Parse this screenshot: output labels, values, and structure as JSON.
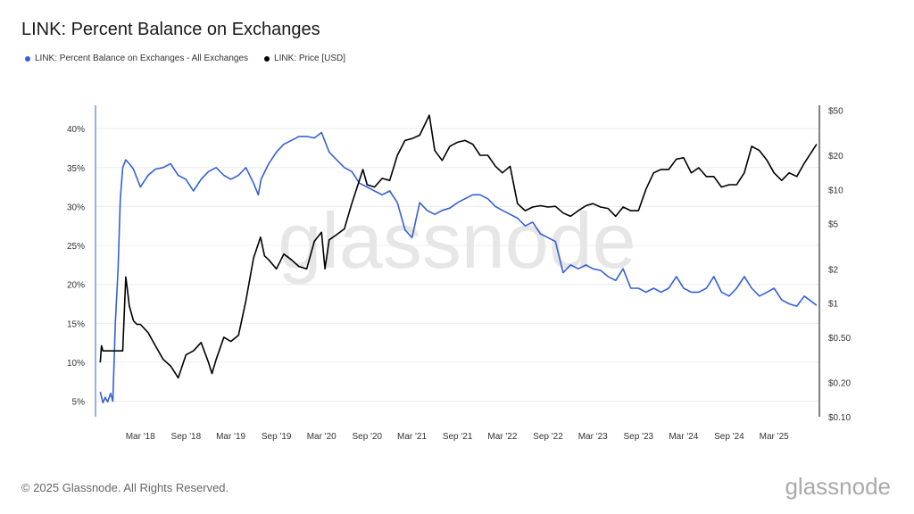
{
  "header": {
    "title": "LINK: Percent Balance on Exchanges"
  },
  "legend": [
    {
      "label": "LINK: Percent Balance on Exchanges - All Exchanges",
      "color": "#3560d6"
    },
    {
      "label": "LINK: Price [USD]",
      "color": "#000000"
    }
  ],
  "footer": {
    "copyright": "© 2025 Glassnode. All Rights Reserved.",
    "brand": "glassnode"
  },
  "watermark": "glassnode",
  "chart_data": {
    "type": "line",
    "x_axis": {
      "type": "date",
      "range": [
        "2017-09-01",
        "2025-08-31"
      ],
      "tick_labels": [
        "Mar '18",
        "Sep '18",
        "Mar '19",
        "Sep '19",
        "Mar '20",
        "Sep '20",
        "Mar '21",
        "Sep '21",
        "Mar '22",
        "Sep '22",
        "Mar '23",
        "Sep '23",
        "Mar '24",
        "Sep '24",
        "Mar '25"
      ],
      "tick_dates": [
        "2018-03-01",
        "2018-09-01",
        "2019-03-01",
        "2019-09-01",
        "2020-03-01",
        "2020-09-01",
        "2021-03-01",
        "2021-09-01",
        "2022-03-01",
        "2022-09-01",
        "2023-03-01",
        "2023-09-01",
        "2024-03-01",
        "2024-09-01",
        "2025-03-01"
      ]
    },
    "y_left": {
      "label": "",
      "unit": "%",
      "range": [
        3,
        43
      ],
      "ticks": [
        5,
        10,
        15,
        20,
        25,
        30,
        35,
        40
      ],
      "tick_labels": [
        "5%",
        "10%",
        "15%",
        "20%",
        "25%",
        "30%",
        "35%",
        "40%"
      ]
    },
    "y_right": {
      "label": "",
      "scale": "log",
      "range": [
        0.1,
        55
      ],
      "ticks": [
        0.1,
        0.2,
        0.5,
        1,
        2,
        5,
        10,
        20,
        50
      ],
      "tick_labels": [
        "$0.10",
        "$0.20",
        "$0.50",
        "$1",
        "$2",
        "$5",
        "$10",
        "$20",
        "$50"
      ]
    },
    "grid": "horizontal",
    "series": [
      {
        "name": "LINK: Percent Balance on Exchanges - All Exchanges",
        "axis": "left",
        "color": "#3560d6",
        "x": [
          "2017-09-20",
          "2017-10-01",
          "2017-10-10",
          "2017-10-20",
          "2017-11-01",
          "2017-11-10",
          "2017-11-20",
          "2017-12-01",
          "2017-12-10",
          "2017-12-20",
          "2018-01-01",
          "2018-01-15",
          "2018-02-01",
          "2018-03-01",
          "2018-04-01",
          "2018-05-01",
          "2018-06-01",
          "2018-07-01",
          "2018-08-01",
          "2018-09-01",
          "2018-10-01",
          "2018-11-01",
          "2018-12-01",
          "2019-01-01",
          "2019-02-01",
          "2019-03-01",
          "2019-04-01",
          "2019-05-01",
          "2019-06-01",
          "2019-06-20",
          "2019-07-01",
          "2019-08-01",
          "2019-09-01",
          "2019-10-01",
          "2019-11-01",
          "2019-12-01",
          "2020-01-01",
          "2020-02-01",
          "2020-03-01",
          "2020-04-01",
          "2020-05-01",
          "2020-06-01",
          "2020-07-01",
          "2020-08-01",
          "2020-09-01",
          "2020-10-01",
          "2020-11-01",
          "2020-12-01",
          "2021-01-01",
          "2021-02-01",
          "2021-03-01",
          "2021-04-01",
          "2021-05-01",
          "2021-06-01",
          "2021-07-01",
          "2021-08-01",
          "2021-09-01",
          "2021-10-01",
          "2021-11-01",
          "2021-12-01",
          "2022-01-01",
          "2022-02-01",
          "2022-03-01",
          "2022-04-01",
          "2022-05-01",
          "2022-06-01",
          "2022-07-01",
          "2022-08-01",
          "2022-09-01",
          "2022-10-01",
          "2022-11-01",
          "2022-12-01",
          "2023-01-01",
          "2023-02-01",
          "2023-03-01",
          "2023-04-01",
          "2023-05-01",
          "2023-06-01",
          "2023-07-01",
          "2023-08-01",
          "2023-09-01",
          "2023-10-01",
          "2023-11-01",
          "2023-12-01",
          "2024-01-01",
          "2024-02-01",
          "2024-03-01",
          "2024-04-01",
          "2024-05-01",
          "2024-06-01",
          "2024-07-01",
          "2024-08-01",
          "2024-09-01",
          "2024-10-01",
          "2024-11-01",
          "2024-12-01",
          "2025-01-01",
          "2025-02-01",
          "2025-03-01",
          "2025-04-01",
          "2025-05-01",
          "2025-06-01",
          "2025-07-01",
          "2025-08-20"
        ],
        "values": [
          6.2,
          4.8,
          5.5,
          4.9,
          6.0,
          5.0,
          15.0,
          22.0,
          31.0,
          35.0,
          36.0,
          35.5,
          34.8,
          32.5,
          34.0,
          34.8,
          35.0,
          35.5,
          34.0,
          33.5,
          32.0,
          33.5,
          34.5,
          35.0,
          34.0,
          33.5,
          34.0,
          35.0,
          33.0,
          31.5,
          33.5,
          35.5,
          37.0,
          38.0,
          38.5,
          39.0,
          39.0,
          38.8,
          39.5,
          37.0,
          36.0,
          35.0,
          34.5,
          33.0,
          32.5,
          32.0,
          31.5,
          32.0,
          30.5,
          27.0,
          26.0,
          30.5,
          29.5,
          29.0,
          29.5,
          29.8,
          30.5,
          31.0,
          31.5,
          31.5,
          31.0,
          30.0,
          29.5,
          29.0,
          28.5,
          27.5,
          28.0,
          26.5,
          26.0,
          25.5,
          21.5,
          22.5,
          22.0,
          22.5,
          22.0,
          21.8,
          21.0,
          20.5,
          22.0,
          19.5,
          19.5,
          19.0,
          19.5,
          19.0,
          19.5,
          21.0,
          19.5,
          19.0,
          19.0,
          19.5,
          21.0,
          19.0,
          18.5,
          19.5,
          21.0,
          19.5,
          18.5,
          19.0,
          19.5,
          18.0,
          17.5,
          17.2,
          18.5,
          17.3
        ]
      },
      {
        "name": "LINK: Price [USD]",
        "axis": "right",
        "color": "#000000",
        "x": [
          "2017-09-20",
          "2017-09-25",
          "2017-10-01",
          "2017-11-01",
          "2017-12-01",
          "2017-12-20",
          "2018-01-01",
          "2018-01-08",
          "2018-01-15",
          "2018-02-01",
          "2018-02-15",
          "2018-03-01",
          "2018-04-01",
          "2018-05-01",
          "2018-06-01",
          "2018-07-01",
          "2018-08-01",
          "2018-09-01",
          "2018-10-01",
          "2018-11-01",
          "2018-12-01",
          "2018-12-15",
          "2019-01-01",
          "2019-02-01",
          "2019-03-01",
          "2019-04-01",
          "2019-05-01",
          "2019-06-01",
          "2019-06-29",
          "2019-07-15",
          "2019-08-01",
          "2019-09-01",
          "2019-10-01",
          "2019-11-01",
          "2019-12-01",
          "2020-01-01",
          "2020-02-01",
          "2020-03-01",
          "2020-03-15",
          "2020-04-01",
          "2020-05-01",
          "2020-06-01",
          "2020-07-01",
          "2020-08-15",
          "2020-09-01",
          "2020-10-01",
          "2020-11-01",
          "2020-12-01",
          "2021-01-01",
          "2021-02-01",
          "2021-03-01",
          "2021-04-01",
          "2021-05-10",
          "2021-06-01",
          "2021-07-01",
          "2021-08-01",
          "2021-09-01",
          "2021-10-01",
          "2021-11-01",
          "2021-12-01",
          "2022-01-01",
          "2022-02-01",
          "2022-03-01",
          "2022-04-01",
          "2022-05-01",
          "2022-06-01",
          "2022-07-01",
          "2022-08-01",
          "2022-09-01",
          "2022-10-01",
          "2022-11-01",
          "2022-12-01",
          "2023-01-01",
          "2023-02-01",
          "2023-03-01",
          "2023-04-01",
          "2023-05-01",
          "2023-06-01",
          "2023-07-01",
          "2023-08-01",
          "2023-09-01",
          "2023-10-01",
          "2023-11-01",
          "2023-12-01",
          "2024-01-01",
          "2024-02-01",
          "2024-03-01",
          "2024-04-01",
          "2024-05-01",
          "2024-06-01",
          "2024-07-01",
          "2024-08-01",
          "2024-09-01",
          "2024-10-01",
          "2024-11-01",
          "2024-12-01",
          "2025-01-01",
          "2025-02-01",
          "2025-03-01",
          "2025-04-01",
          "2025-05-01",
          "2025-06-01",
          "2025-07-01",
          "2025-08-20"
        ],
        "values": [
          0.3,
          0.42,
          0.38,
          0.38,
          0.38,
          0.38,
          1.7,
          1.3,
          0.95,
          0.7,
          0.65,
          0.65,
          0.55,
          0.42,
          0.32,
          0.28,
          0.22,
          0.35,
          0.38,
          0.45,
          0.3,
          0.24,
          0.32,
          0.5,
          0.46,
          0.52,
          1.05,
          2.5,
          3.8,
          2.6,
          2.4,
          2.0,
          2.7,
          2.4,
          2.1,
          2.0,
          3.5,
          4.2,
          2.0,
          3.6,
          4.0,
          4.5,
          7.5,
          15.0,
          11.0,
          10.5,
          12.5,
          12.0,
          20.0,
          27.0,
          28.0,
          30.0,
          45.0,
          22.0,
          18.0,
          24.0,
          26.0,
          27.0,
          25.0,
          20.0,
          20.0,
          16.0,
          14.0,
          16.0,
          7.5,
          6.5,
          7.0,
          7.2,
          7.0,
          7.1,
          6.2,
          5.8,
          6.5,
          7.2,
          7.5,
          7.0,
          6.8,
          5.8,
          7.0,
          6.5,
          6.5,
          10.0,
          14.0,
          15.0,
          15.0,
          18.5,
          19.0,
          14.0,
          15.5,
          13.0,
          13.0,
          10.5,
          11.0,
          11.0,
          14.0,
          24.0,
          22.0,
          18.0,
          14.0,
          12.0,
          14.0,
          13.0,
          17.0,
          25.0
        ]
      }
    ]
  }
}
